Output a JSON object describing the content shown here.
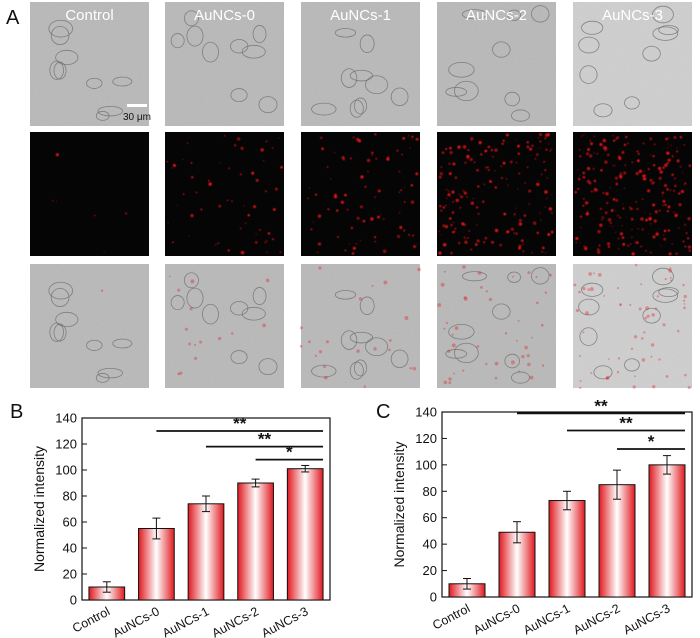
{
  "panel_letters": {
    "a": "A",
    "b": "B",
    "c": "C"
  },
  "micrographs": {
    "groups": [
      "Control",
      "AuNCs-0",
      "AuNCs-1",
      "AuNCs-2",
      "AuNCs-3"
    ],
    "rows": [
      "brightfield",
      "fluorescence",
      "merge"
    ],
    "scale_bar_label": "30 μm",
    "fluorescence_color": "#e0151b",
    "relative_fluorescence_density": [
      0.02,
      0.25,
      0.35,
      0.75,
      1.0
    ]
  },
  "chart_data": [
    {
      "type": "bar",
      "panel": "B",
      "title": "",
      "xlabel": "",
      "ylabel": "Normalized intensity",
      "categories": [
        "Control",
        "AuNCs-0",
        "AuNCs-1",
        "AuNCs-2",
        "AuNCs-3"
      ],
      "values": [
        10,
        55,
        74,
        90,
        101
      ],
      "errors": [
        4,
        8,
        6,
        3,
        2.5
      ],
      "ylim": [
        0,
        140
      ],
      "yticks": [
        0,
        20,
        40,
        60,
        80,
        100,
        120,
        140
      ],
      "grid": false,
      "bar_color": "#e02020",
      "significance": [
        {
          "from": "AuNCs-0",
          "to": "AuNCs-3",
          "label": "**",
          "y": 130
        },
        {
          "from": "AuNCs-1",
          "to": "AuNCs-3",
          "label": "**",
          "y": 118
        },
        {
          "from": "AuNCs-2",
          "to": "AuNCs-3",
          "label": "*",
          "y": 108
        }
      ]
    },
    {
      "type": "bar",
      "panel": "C",
      "title": "",
      "xlabel": "",
      "ylabel": "Normalized intensity",
      "categories": [
        "Control",
        "AuNCs-0",
        "AuNCs-1",
        "AuNCs-2",
        "AuNCs-3"
      ],
      "values": [
        10,
        49,
        73,
        85,
        100
      ],
      "errors": [
        4,
        8,
        7,
        11,
        7
      ],
      "ylim": [
        0,
        140
      ],
      "yticks": [
        0,
        20,
        40,
        60,
        80,
        100,
        120,
        140
      ],
      "grid": false,
      "bar_color": "#e02020",
      "significance": [
        {
          "from": "AuNCs-0",
          "to": "AuNCs-3",
          "label": "**",
          "y": 139
        },
        {
          "from": "AuNCs-1",
          "to": "AuNCs-3",
          "label": "**",
          "y": 126
        },
        {
          "from": "AuNCs-2",
          "to": "AuNCs-3",
          "label": "*",
          "y": 112
        }
      ]
    }
  ]
}
